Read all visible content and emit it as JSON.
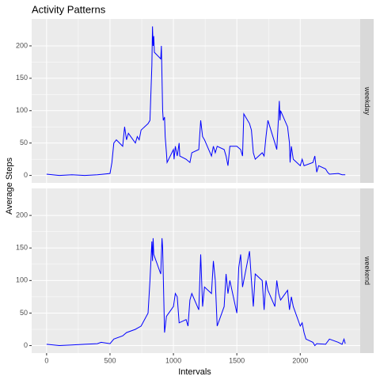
{
  "chart_data": {
    "type": "line",
    "title": "Activity Patterns",
    "xlabel": "Intervals",
    "ylabel": "Average Steps",
    "xlim": [
      -117.75,
      2472.75
    ],
    "xticks": [
      0,
      500,
      1000,
      1500,
      2000
    ],
    "ylim": [
      -11.5,
      241.5
    ],
    "yticks": [
      0,
      50,
      100,
      150,
      200
    ],
    "grid": true,
    "panels": [
      {
        "name": "weekday",
        "color": "#0000ff",
        "x": [
          0,
          100,
          200,
          300,
          400,
          500,
          515,
          530,
          550,
          600,
          615,
          630,
          645,
          700,
          715,
          730,
          745,
          800,
          815,
          830,
          835,
          840,
          845,
          850,
          900,
          905,
          910,
          915,
          920,
          930,
          935,
          945,
          950,
          1000,
          1005,
          1015,
          1030,
          1045,
          1050,
          1100,
          1130,
          1145,
          1200,
          1215,
          1230,
          1245,
          1300,
          1315,
          1330,
          1345,
          1400,
          1415,
          1430,
          1445,
          1500,
          1530,
          1545,
          1555,
          1600,
          1615,
          1630,
          1645,
          1700,
          1715,
          1730,
          1745,
          1800,
          1815,
          1830,
          1835,
          1840,
          1845,
          1900,
          1915,
          1920,
          1930,
          1945,
          2000,
          2015,
          2030,
          2100,
          2115,
          2130,
          2145,
          2200,
          2215,
          2230,
          2300,
          2330,
          2355
        ],
        "values": [
          2,
          0,
          1,
          0,
          1,
          3,
          20,
          50,
          55,
          45,
          75,
          55,
          65,
          50,
          60,
          55,
          70,
          80,
          85,
          170,
          230,
          200,
          215,
          190,
          180,
          200,
          150,
          100,
          85,
          90,
          60,
          35,
          20,
          40,
          25,
          45,
          30,
          50,
          30,
          25,
          20,
          35,
          40,
          85,
          60,
          55,
          30,
          45,
          35,
          45,
          40,
          30,
          15,
          45,
          45,
          40,
          30,
          95,
          80,
          70,
          35,
          25,
          35,
          30,
          60,
          85,
          50,
          40,
          95,
          115,
          85,
          100,
          75,
          50,
          20,
          45,
          25,
          15,
          25,
          15,
          20,
          30,
          5,
          15,
          10,
          5,
          2,
          3,
          1,
          1
        ]
      },
      {
        "name": "weekend",
        "color": "#0000ff",
        "x": [
          0,
          100,
          200,
          300,
          400,
          430,
          500,
          530,
          600,
          630,
          700,
          745,
          800,
          815,
          830,
          835,
          840,
          845,
          900,
          910,
          915,
          930,
          945,
          1000,
          1015,
          1030,
          1045,
          1100,
          1115,
          1130,
          1145,
          1200,
          1215,
          1230,
          1245,
          1300,
          1315,
          1330,
          1345,
          1400,
          1415,
          1430,
          1445,
          1500,
          1515,
          1530,
          1545,
          1600,
          1615,
          1630,
          1645,
          1700,
          1715,
          1730,
          1745,
          1800,
          1815,
          1830,
          1845,
          1900,
          1915,
          1930,
          1945,
          2000,
          2015,
          2030,
          2045,
          2100,
          2115,
          2130,
          2200,
          2230,
          2300,
          2330,
          2345,
          2355
        ],
        "values": [
          2,
          0,
          1,
          2,
          3,
          5,
          3,
          10,
          15,
          20,
          25,
          30,
          50,
          100,
          160,
          130,
          165,
          140,
          110,
          165,
          150,
          20,
          45,
          60,
          80,
          75,
          35,
          40,
          30,
          70,
          80,
          55,
          140,
          60,
          90,
          80,
          130,
          100,
          30,
          60,
          110,
          80,
          100,
          50,
          120,
          140,
          90,
          145,
          100,
          60,
          110,
          100,
          55,
          100,
          85,
          60,
          100,
          80,
          70,
          85,
          55,
          75,
          60,
          30,
          35,
          20,
          10,
          5,
          0,
          3,
          2,
          10,
          5,
          2,
          10,
          3
        ]
      }
    ]
  }
}
